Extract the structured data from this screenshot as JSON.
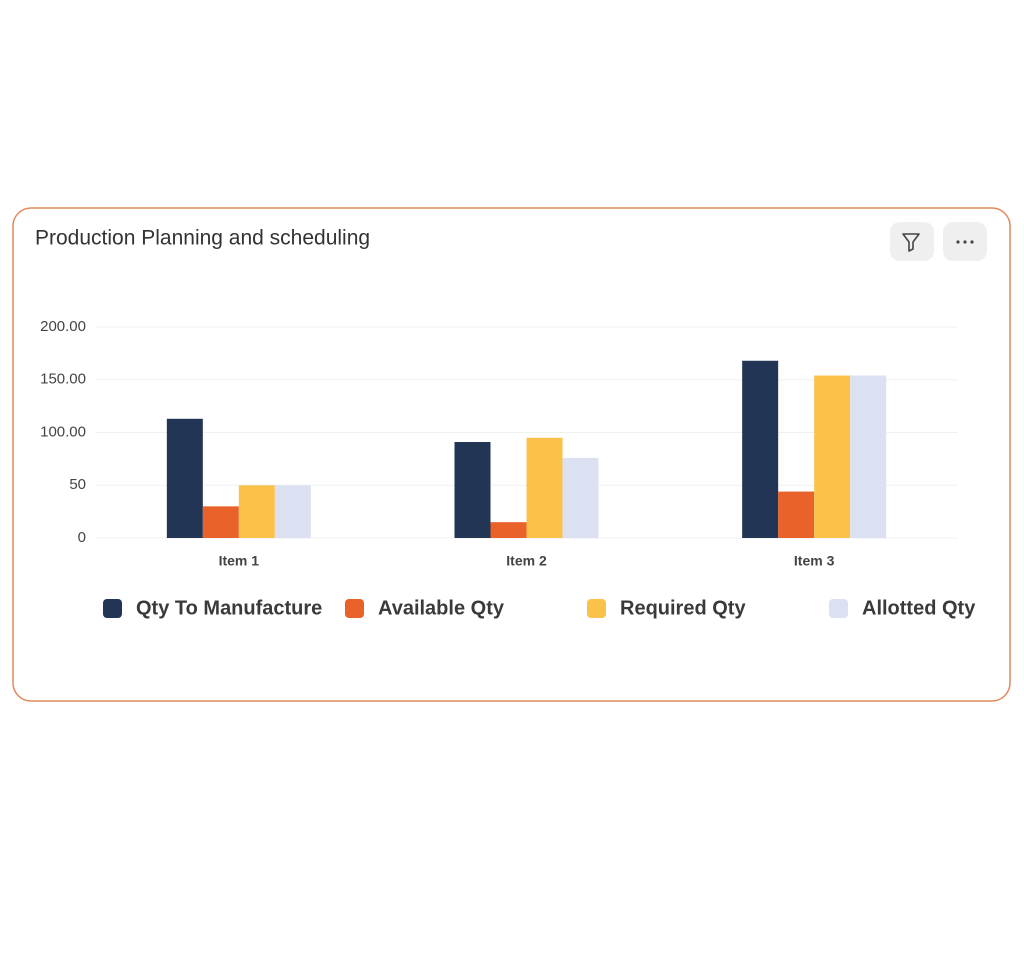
{
  "chart_data": {
    "type": "bar",
    "title": "Production Planning and scheduling",
    "categories": [
      "Item 1",
      "Item 2",
      "Item 3"
    ],
    "series": [
      {
        "name": "Qty To Manufacture",
        "color": "#223554",
        "values": [
          113,
          91,
          168
        ]
      },
      {
        "name": "Available Qty",
        "color": "#e8622a",
        "values": [
          30,
          15,
          44
        ]
      },
      {
        "name": "Required Qty",
        "color": "#fbc24a",
        "values": [
          50,
          95,
          154
        ]
      },
      {
        "name": "Allotted Qty",
        "color": "#dbe1f1",
        "values": [
          50,
          76,
          154
        ]
      }
    ],
    "ylim": [
      0,
      200
    ],
    "yticks": [
      0,
      50,
      {
        "value": 100,
        "label": "100.00"
      },
      {
        "value": 150,
        "label": "150.00"
      },
      {
        "value": 200,
        "label": "200.00"
      }
    ],
    "grid": true,
    "legend": "bottom"
  }
}
